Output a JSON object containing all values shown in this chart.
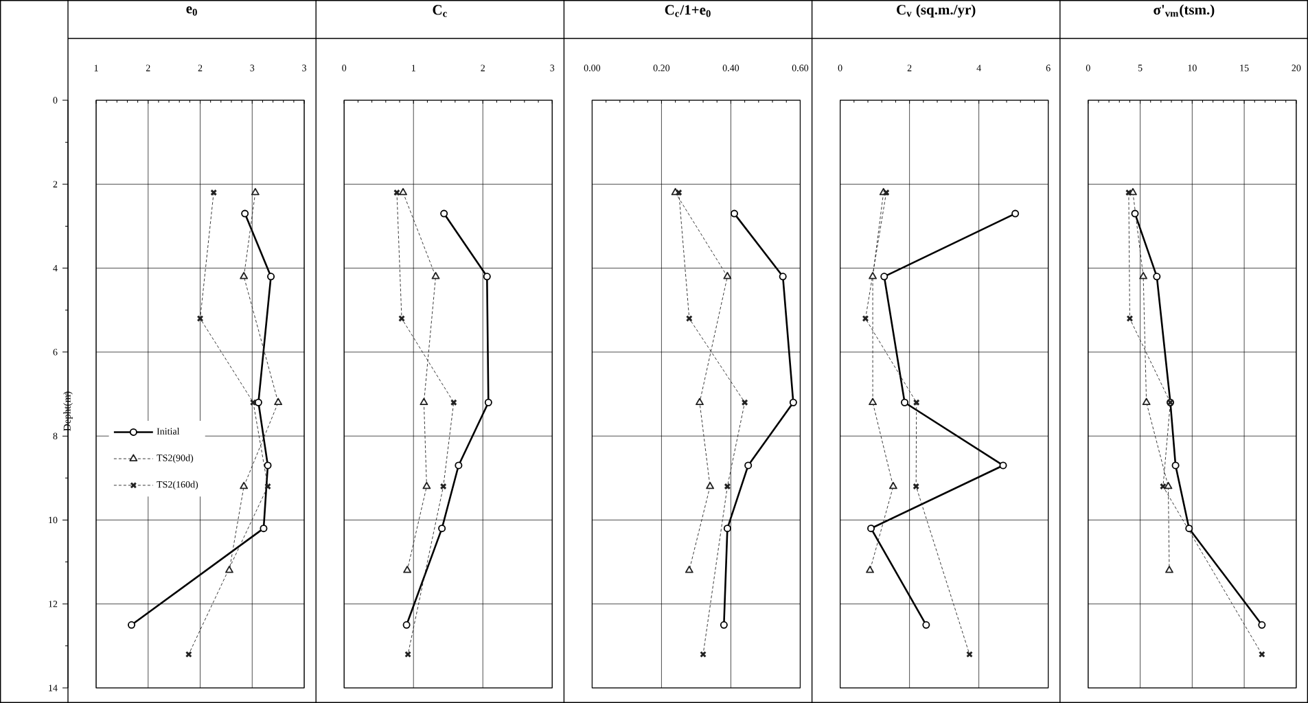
{
  "chart_data": [
    {
      "type": "line",
      "title": "e$_{0}$",
      "ylabel": "Depht(m)",
      "xlim": [
        1,
        3
      ],
      "xticks": [
        1,
        {
          "value": 1.5,
          "label": "2"
        },
        2,
        {
          "value": 2.5,
          "label": "3"
        },
        3
      ],
      "ylim": [
        14,
        0
      ],
      "yticks": [
        0,
        2,
        4,
        6,
        8,
        10,
        12,
        14
      ],
      "grid": true,
      "legend": "left",
      "series": [
        {
          "name": "Initial",
          "color": "#000000",
          "marker": "circle",
          "line_style": "solid",
          "x": [
            2.43,
            2.68,
            2.56,
            2.65,
            2.61,
            1.34
          ],
          "values": [
            2.7,
            4.2,
            7.2,
            8.7,
            10.2,
            12.5
          ]
        },
        {
          "name": "TS2(90d)",
          "color": "#222222",
          "marker": "triangle",
          "line_style": "dashed",
          "x": [
            2.53,
            2.42,
            2.75,
            2.42,
            2.28
          ],
          "values": [
            2.2,
            4.2,
            7.2,
            9.2,
            11.2
          ]
        },
        {
          "name": "TS2(160d)",
          "color": "#222222",
          "marker": "cross",
          "line_style": "dashed",
          "x": [
            2.13,
            2.0,
            2.51,
            2.65,
            1.89
          ],
          "values": [
            2.2,
            5.2,
            7.2,
            9.2,
            13.2
          ]
        }
      ]
    },
    {
      "type": "line",
      "title": "C$_{c}$",
      "xlim": [
        0,
        3
      ],
      "xticks": [
        0,
        1,
        2,
        3
      ],
      "ylim": [
        14,
        0
      ],
      "yticks": [
        0,
        2,
        4,
        6,
        8,
        10,
        12,
        14
      ],
      "grid": true,
      "tick_labels": "x",
      "series": [
        {
          "color": "#000000",
          "marker": "circle",
          "line_style": "solid",
          "x": [
            1.44,
            2.06,
            2.08,
            1.65,
            1.41,
            0.9
          ],
          "values": [
            2.7,
            4.2,
            7.2,
            8.7,
            10.2,
            12.5
          ]
        },
        {
          "color": "#222222",
          "marker": "triangle",
          "line_style": "dashed",
          "x": [
            0.85,
            1.32,
            1.15,
            1.19,
            0.91
          ],
          "values": [
            2.2,
            4.2,
            7.2,
            9.2,
            11.2
          ]
        },
        {
          "color": "#222222",
          "marker": "cross",
          "line_style": "dashed",
          "x": [
            0.76,
            0.83,
            1.58,
            1.43,
            0.92
          ],
          "values": [
            2.2,
            5.2,
            7.2,
            9.2,
            13.2
          ]
        }
      ]
    },
    {
      "type": "line",
      "title": "C$_{c}$/1+e$_{0}$",
      "xlim": [
        0,
        0.6
      ],
      "xticks": [
        {
          "value": 0,
          "label": "0.00"
        },
        {
          "value": 0.2,
          "label": "0.20"
        },
        {
          "value": 0.4,
          "label": "0.40"
        },
        {
          "value": 0.6,
          "label": "0.60"
        }
      ],
      "ylim": [
        14,
        0
      ],
      "yticks": [
        0,
        2,
        4,
        6,
        8,
        10,
        12,
        14
      ],
      "grid": true,
      "tick_labels": "x",
      "series": [
        {
          "color": "#000000",
          "marker": "circle",
          "line_style": "solid",
          "x": [
            0.41,
            0.55,
            0.58,
            0.45,
            0.39,
            0.38
          ],
          "values": [
            2.7,
            4.2,
            7.2,
            8.7,
            10.2,
            12.5
          ]
        },
        {
          "color": "#222222",
          "marker": "triangle",
          "line_style": "dashed",
          "x": [
            0.24,
            0.39,
            0.31,
            0.34,
            0.28
          ],
          "values": [
            2.2,
            4.2,
            7.2,
            9.2,
            11.2
          ]
        },
        {
          "color": "#222222",
          "marker": "cross",
          "line_style": "dashed",
          "x": [
            0.25,
            0.28,
            0.44,
            0.39,
            0.32
          ],
          "values": [
            2.2,
            5.2,
            7.2,
            9.2,
            13.2
          ]
        }
      ]
    },
    {
      "type": "line",
      "title": "C$_{v}$ (sq.m./yr)",
      "xlim": [
        0,
        6
      ],
      "xticks": [
        0,
        2,
        4,
        6
      ],
      "ylim": [
        14,
        0
      ],
      "yticks": [
        0,
        2,
        4,
        6,
        8,
        10,
        12,
        14
      ],
      "grid": true,
      "tick_labels": "x",
      "series": [
        {
          "color": "#000000",
          "marker": "circle",
          "line_style": "solid",
          "x": [
            5.05,
            1.27,
            1.86,
            4.7,
            0.89,
            2.48
          ],
          "values": [
            2.7,
            4.2,
            7.2,
            8.7,
            10.2,
            12.5
          ]
        },
        {
          "color": "#222222",
          "marker": "triangle",
          "line_style": "dashed",
          "x": [
            1.25,
            0.94,
            0.94,
            1.53,
            0.86
          ],
          "values": [
            2.2,
            4.2,
            7.2,
            9.2,
            11.2
          ]
        },
        {
          "color": "#222222",
          "marker": "cross",
          "line_style": "dashed",
          "x": [
            1.33,
            0.73,
            2.2,
            2.19,
            3.73
          ],
          "values": [
            2.2,
            5.2,
            7.2,
            9.2,
            13.2
          ]
        }
      ]
    },
    {
      "type": "line",
      "title": "σ'$_{vm}$(tsm.)",
      "xlim": [
        0,
        20
      ],
      "xticks": [
        0,
        5,
        10,
        15,
        20
      ],
      "ylim": [
        14,
        0
      ],
      "yticks": [
        0,
        2,
        4,
        6,
        8,
        10,
        12,
        14
      ],
      "grid": true,
      "tick_labels": "x",
      "series": [
        {
          "color": "#000000",
          "marker": "circle",
          "line_style": "solid",
          "x": [
            4.5,
            6.6,
            7.9,
            8.4,
            9.7,
            16.7
          ],
          "values": [
            2.7,
            4.2,
            7.2,
            8.7,
            10.2,
            12.5
          ]
        },
        {
          "color": "#222222",
          "marker": "triangle",
          "line_style": "dashed",
          "x": [
            4.3,
            5.3,
            5.6,
            7.7,
            7.8
          ],
          "values": [
            2.2,
            4.2,
            7.2,
            9.2,
            11.2
          ]
        },
        {
          "color": "#222222",
          "marker": "cross",
          "line_style": "dashed",
          "x": [
            3.9,
            4.0,
            7.9,
            7.2,
            16.7
          ],
          "values": [
            2.2,
            5.2,
            7.2,
            9.2,
            13.2
          ]
        }
      ]
    }
  ]
}
